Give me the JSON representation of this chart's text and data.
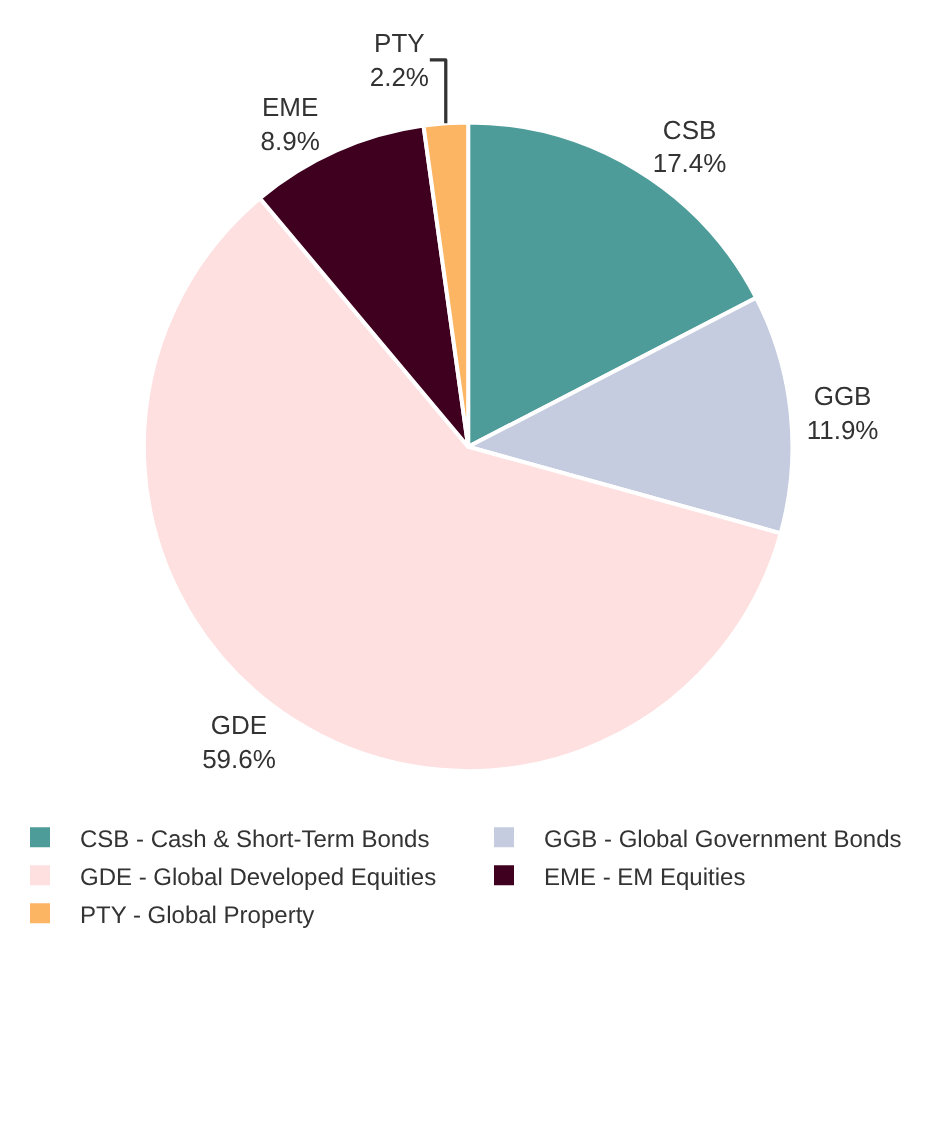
{
  "chart_data": {
    "type": "pie",
    "categories": [
      "CSB - Cash & Short-Term Bonds",
      "GGB - Global Government Bonds",
      "GDE - Global Developed Equities",
      "EME - EM Equities",
      "PTY - Global Property"
    ],
    "values": [
      17.4,
      11.9,
      59.6,
      8.9,
      2.2
    ],
    "value_labels": [
      "CSB\n17.4%",
      "GGB\n11.9%",
      "GDE\n59.6%",
      "EME\n8.9%",
      "PTY\n2.2%"
    ],
    "colors": [
      "#4e9c9a",
      "#c5cce0",
      "#fde0df",
      "#3f0020",
      "#fbb563"
    ],
    "legend": "bottom"
  }
}
